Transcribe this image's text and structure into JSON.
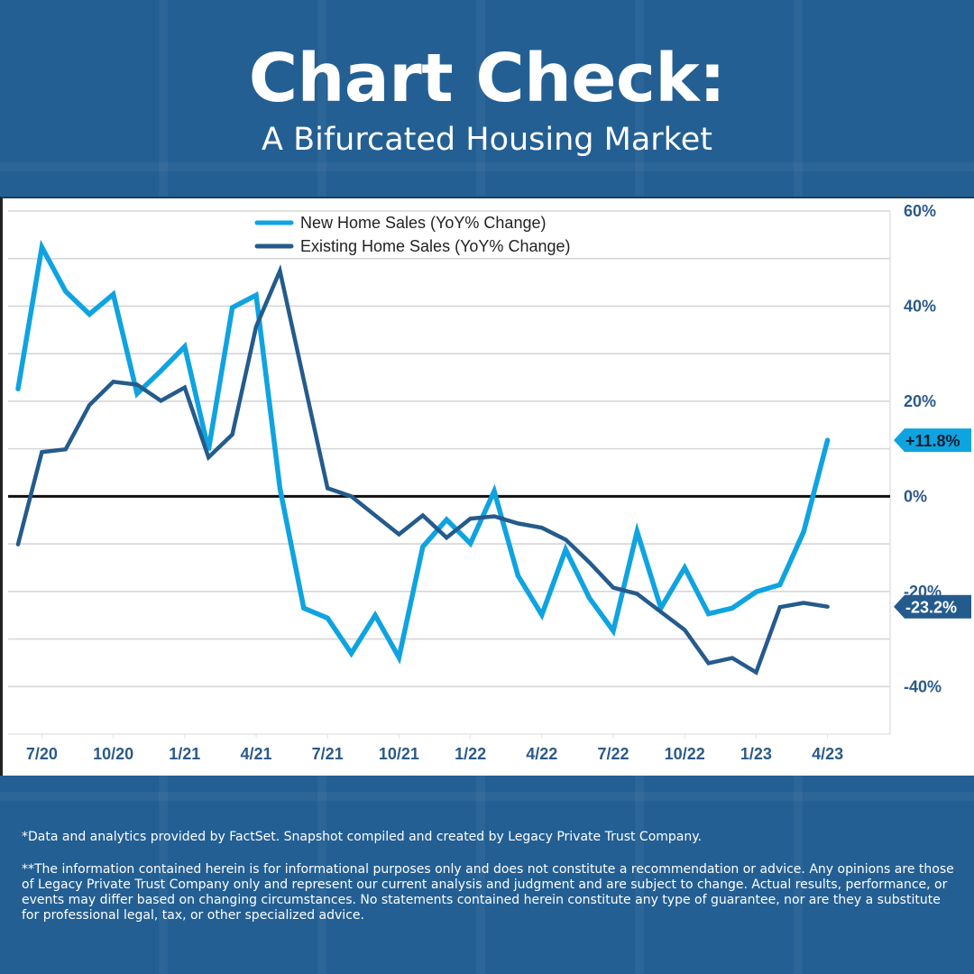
{
  "header": {
    "title": "Chart Check:",
    "subtitle": "A Bifurcated Housing Market"
  },
  "chart_data": {
    "type": "line",
    "title": "Chart Check: A Bifurcated Housing Market",
    "xlabel": "",
    "ylabel": "",
    "ylim": [
      -50,
      60
    ],
    "yticks": [
      60,
      40,
      20,
      0,
      -20,
      -40
    ],
    "ytick_labels": [
      "60%",
      "40%",
      "20%",
      "0%",
      "-20%",
      "-40%"
    ],
    "y_axis_side": "right",
    "grid": true,
    "grid_step": 10,
    "zero_line": true,
    "legend_position": "top-center",
    "x": [
      "6/20",
      "7/20",
      "8/20",
      "9/20",
      "10/20",
      "11/20",
      "12/20",
      "1/21",
      "2/21",
      "3/21",
      "4/21",
      "5/21",
      "6/21",
      "7/21",
      "8/21",
      "9/21",
      "10/21",
      "11/21",
      "12/21",
      "1/22",
      "2/22",
      "3/22",
      "4/22",
      "5/22",
      "6/22",
      "7/22",
      "8/22",
      "9/22",
      "10/22",
      "11/22",
      "12/22",
      "1/23",
      "2/23",
      "3/23",
      "4/23"
    ],
    "xtick_labels": [
      "7/20",
      "10/20",
      "1/21",
      "4/21",
      "7/21",
      "10/21",
      "1/22",
      "4/22",
      "7/22",
      "10/22",
      "1/23",
      "4/23"
    ],
    "xtick_indices": [
      1,
      4,
      7,
      10,
      13,
      16,
      19,
      22,
      25,
      28,
      31,
      34
    ],
    "series": [
      {
        "name": "New Home Sales (YoY% Change)",
        "color": "#0fa3e0",
        "values": [
          22.6,
          52.4,
          43.1,
          38.3,
          42.5,
          21.6,
          26.4,
          31.5,
          9.7,
          39.7,
          42.3,
          1.7,
          -23.5,
          -25.6,
          -33.0,
          -25.0,
          -33.9,
          -10.6,
          -4.9,
          -9.9,
          1.1,
          -16.7,
          -24.9,
          -11.2,
          -21.4,
          -28.3,
          -7.4,
          -23.5,
          -15.0,
          -24.7,
          -23.5,
          -20.1,
          -18.6,
          -7.4,
          11.8
        ],
        "last_value_label": "+11.8%"
      },
      {
        "name": "Existing Home Sales (YoY% Change)",
        "color": "#245b8c",
        "values": [
          -10.1,
          9.3,
          9.9,
          19.2,
          24.1,
          23.5,
          20.1,
          22.9,
          8.2,
          13.0,
          35.7,
          47.4,
          24.5,
          1.7,
          0.0,
          -4.0,
          -8.0,
          -4.0,
          -8.7,
          -4.7,
          -4.2,
          -5.7,
          -6.6,
          -9.1,
          -13.9,
          -19.2,
          -20.5,
          -24.3,
          -28.1,
          -35.1,
          -34.0,
          -37.0,
          -23.3,
          -22.4,
          -23.2
        ],
        "last_value_label": "-23.2%"
      }
    ]
  },
  "footer": {
    "source_note": "*Data and analytics provided by FactSet. Snapshot compiled and created by Legacy Private Trust Company.",
    "disclaimer": "**The information contained herein is for informational purposes only and does not constitute a recommendation or advice. Any opinions are those of Legacy Private Trust Company only and represent our current analysis and judgment and are subject to change. Actual results, performance, or events may differ based on changing circumstances. No statements contained herein constitute any type of guarantee, nor are they a substitute for professional legal, tax, or other specialized advice."
  }
}
